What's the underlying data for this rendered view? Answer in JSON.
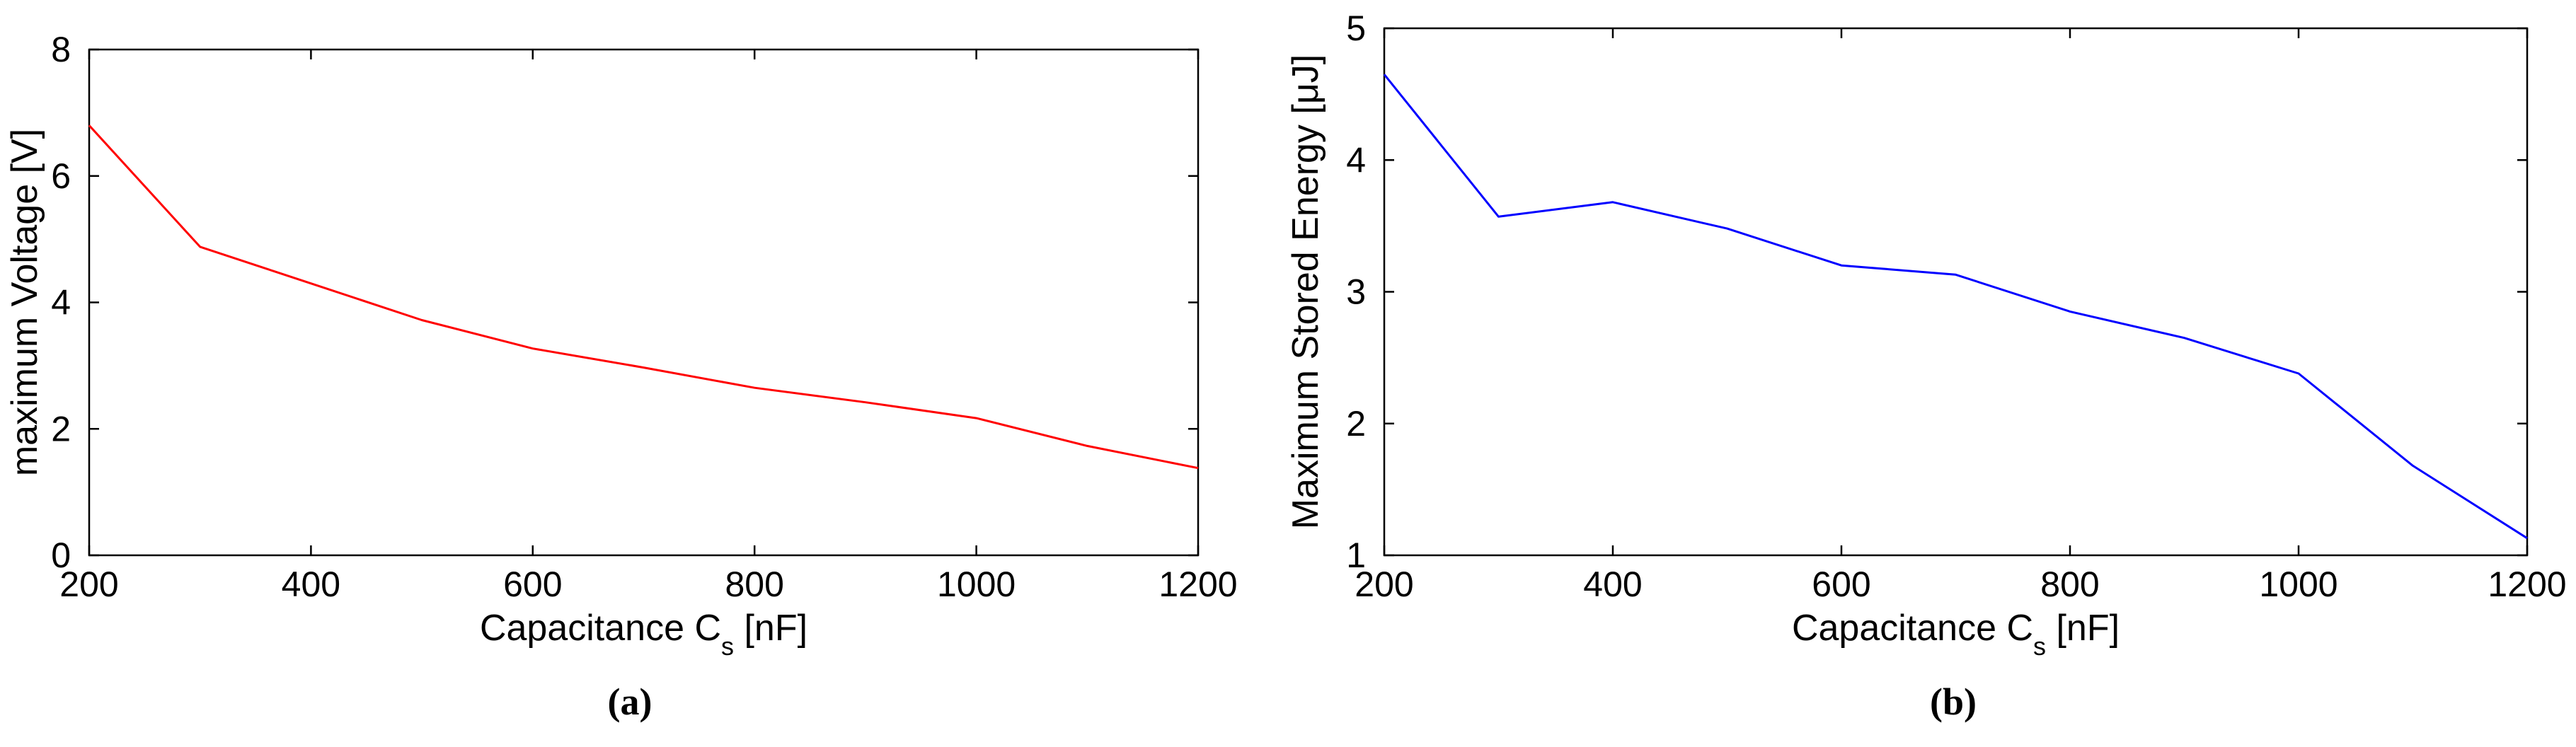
{
  "chart_data": [
    {
      "type": "line",
      "panel_label": "(a)",
      "xlabel": "Capacitance C",
      "xlabel_sub": "s",
      "xlabel_unit": " [nF]",
      "ylabel": "maximum Voltage [V]",
      "xlim": [
        200,
        1200
      ],
      "ylim": [
        0,
        8
      ],
      "xticks": [
        200,
        400,
        600,
        800,
        1000,
        1200
      ],
      "yticks": [
        0,
        2,
        4,
        6,
        8
      ],
      "grid": false,
      "series": [
        {
          "color": "#ff0000",
          "x": [
            200,
            300,
            400,
            500,
            600,
            700,
            800,
            900,
            1000,
            1100,
            1200
          ],
          "y": [
            6.8,
            4.88,
            4.3,
            3.72,
            3.27,
            2.97,
            2.65,
            2.42,
            2.17,
            1.73,
            1.38
          ]
        }
      ]
    },
    {
      "type": "line",
      "panel_label": "(b)",
      "xlabel": "Capacitance C",
      "xlabel_sub": "s",
      "xlabel_unit": " [nF]",
      "ylabel": "Maximum Stored Energy [μJ]",
      "xlim": [
        200,
        1200
      ],
      "ylim": [
        1,
        5
      ],
      "xticks": [
        200,
        400,
        600,
        800,
        1000,
        1200
      ],
      "yticks": [
        1,
        2,
        3,
        4,
        5
      ],
      "grid": false,
      "series": [
        {
          "color": "#0000ff",
          "x": [
            200,
            300,
            400,
            500,
            600,
            700,
            800,
            900,
            1000,
            1100,
            1200
          ],
          "y": [
            4.65,
            3.57,
            3.68,
            3.48,
            3.2,
            3.13,
            2.85,
            2.65,
            2.38,
            1.68,
            1.13
          ]
        }
      ]
    }
  ]
}
